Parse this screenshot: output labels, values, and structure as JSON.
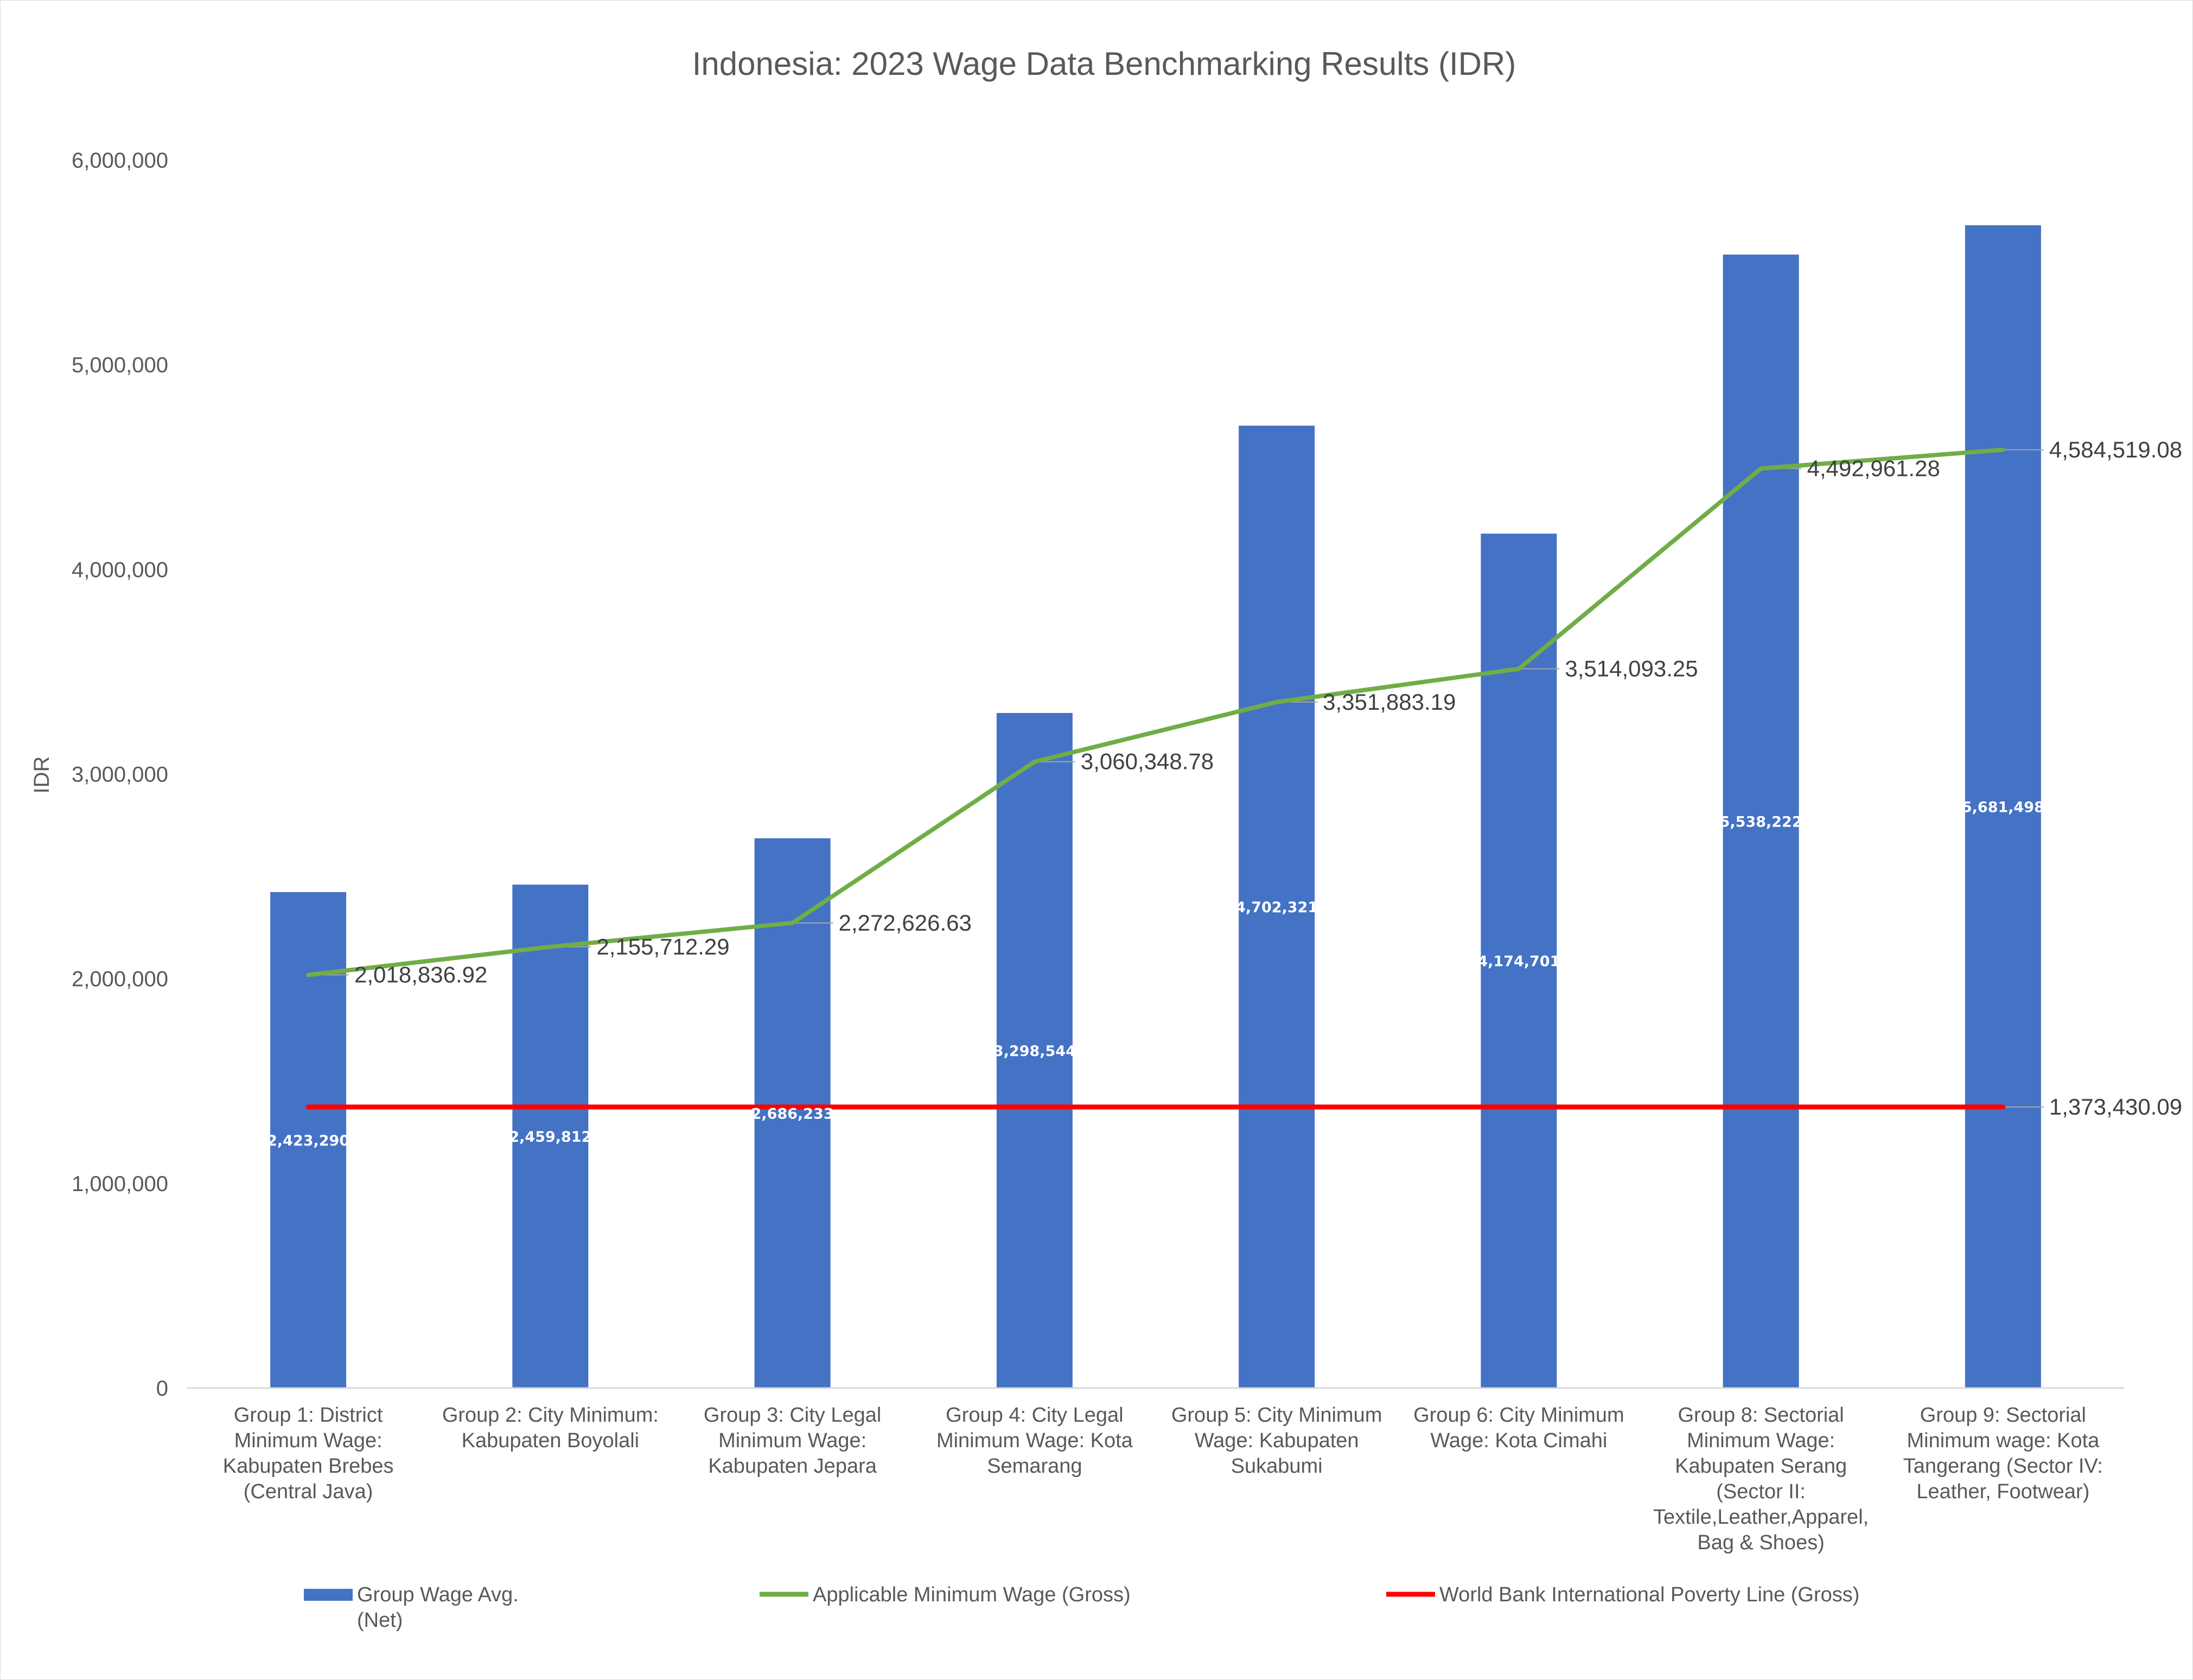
{
  "chart_data": {
    "type": "bar",
    "title": "Indonesia: 2023 Wage Data Benchmarking Results (IDR)",
    "xlabel": "",
    "ylabel": "IDR",
    "ylim": [
      0,
      6000000
    ],
    "yticks": [
      "0",
      "1,000,000",
      "2,000,000",
      "3,000,000",
      "4,000,000",
      "5,000,000",
      "6,000,000"
    ],
    "grid": false,
    "legend_position": "bottom",
    "categories": [
      [
        "Group 1: District",
        "Minimum Wage:",
        "Kabupaten Brebes",
        "(Central Java)"
      ],
      [
        "Group 2: City Minimum:",
        "Kabupaten Boyolali"
      ],
      [
        "Group 3: City Legal",
        "Minimum Wage:",
        "Kabupaten Jepara"
      ],
      [
        "Group 4: City Legal",
        "Minimum Wage: Kota",
        "Semarang"
      ],
      [
        "Group 5: City Minimum",
        "Wage: Kabupaten",
        "Sukabumi"
      ],
      [
        "Group 6: City Minimum",
        "Wage: Kota Cimahi"
      ],
      [
        "Group 8: Sectorial",
        "Minimum Wage:",
        "Kabupaten Serang",
        "(Sector II:",
        "Textile,Leather,Apparel,",
        "Bag & Shoes)"
      ],
      [
        "Group 9: Sectorial",
        "Minimum wage: Kota",
        "Tangerang (Sector IV:",
        "Leather, Footwear)"
      ]
    ],
    "series": [
      {
        "name": "Group Wage Avg. (Net)",
        "legend_lines": [
          "Group Wage Avg.",
          "(Net)"
        ],
        "type": "bar",
        "color": "#4472c4",
        "values": [
          2423290,
          2459812,
          2686233,
          3298544,
          4702321,
          4174701,
          5538222,
          5681498
        ],
        "labels": [
          "2,423,290",
          "2,459,812",
          "2,686,233",
          "3,298,544",
          "4,702,321",
          "4,174,701",
          "5,538,222",
          "5,681,498"
        ]
      },
      {
        "name": "Applicable Minimum Wage (Gross)",
        "legend_lines": [
          "Applicable Minimum Wage (Gross)"
        ],
        "type": "line",
        "color": "#70ad47",
        "values": [
          2018836.92,
          2155712.29,
          2272626.63,
          3060348.78,
          3351883.19,
          3514093.25,
          4492961.28,
          4584519.08
        ],
        "labels": [
          "2,018,836.92",
          "2,155,712.29",
          "2,272,626.63",
          "3,060,348.78",
          "3,351,883.19",
          "3,514,093.25",
          "4,492,961.28",
          "4,584,519.08"
        ]
      },
      {
        "name": "World Bank International Poverty Line (Gross)",
        "legend_lines": [
          "World Bank International Poverty Line (Gross)"
        ],
        "type": "line",
        "color": "#ff0000",
        "values": [
          1373430.09,
          1373430.09,
          1373430.09,
          1373430.09,
          1373430.09,
          1373430.09,
          1373430.09,
          1373430.09
        ],
        "labels": [
          "",
          "",
          "",
          "",
          "",
          "",
          "",
          "1,373,430.09"
        ]
      }
    ]
  }
}
